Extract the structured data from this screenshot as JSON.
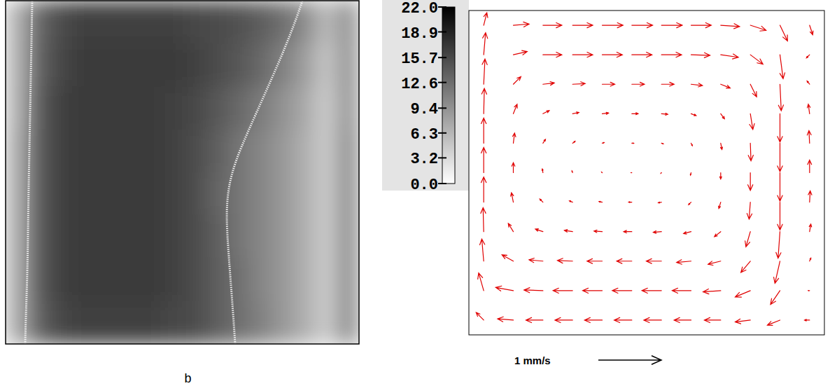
{
  "chart_data": [
    {
      "type": "heatmap",
      "tick_labels": false,
      "cells": [
        [
          6.5,
          13,
          15.5,
          16.5,
          16.5,
          16.5,
          16.5,
          16.5,
          16,
          15.5,
          15,
          14,
          12.5,
          10,
          6,
          9
        ],
        [
          6.5,
          13.5,
          16,
          17,
          17,
          17,
          17,
          17,
          16.5,
          15.5,
          14.5,
          13,
          11,
          8.5,
          5,
          9
        ],
        [
          6.5,
          14,
          16.5,
          17,
          17,
          17,
          17,
          16.5,
          16,
          14.5,
          13,
          11.5,
          9.5,
          7.5,
          4.5,
          9
        ],
        [
          7,
          14,
          16.5,
          17,
          17,
          17,
          17,
          16.5,
          15.5,
          14,
          12,
          10.5,
          9,
          7,
          4.5,
          9.5
        ],
        [
          7,
          14,
          16.5,
          17,
          17,
          17,
          17,
          16.5,
          15.5,
          13.5,
          12,
          10.5,
          9,
          7,
          4.5,
          9.5
        ],
        [
          7,
          14,
          16.5,
          17,
          17,
          17,
          17,
          16.5,
          15.5,
          14,
          12,
          10.5,
          9,
          7,
          4.5,
          9.5
        ],
        [
          7,
          14,
          16.5,
          17,
          17,
          17,
          17,
          16.5,
          15.5,
          14,
          12.5,
          10.5,
          9,
          7,
          4.5,
          9.5
        ],
        [
          7,
          13.5,
          16,
          16.5,
          16.5,
          16.5,
          16.5,
          16,
          15.5,
          14,
          12.5,
          11,
          9,
          7,
          4.5,
          9.5
        ]
      ],
      "colorbar": {
        "lim": [
          0,
          22
        ],
        "ticks": [
          {
            "value": 0,
            "label": "0.0"
          },
          3.2,
          6.3,
          9.4,
          12.6,
          15.7,
          18.9,
          {
            "value": 22,
            "label": "22.0"
          }
        ]
      },
      "annotations": [
        "b"
      ]
    },
    {
      "type": "quiver",
      "tick_labels": false,
      "color": "#e00000",
      "u": [
        [
          0.05,
          0.25,
          0.3,
          0.32,
          0.33,
          0.33,
          0.33,
          0.32,
          0.3,
          0.25,
          0.12,
          0.05
        ],
        [
          0.03,
          0.22,
          0.3,
          0.32,
          0.32,
          0.32,
          0.32,
          0.3,
          0.28,
          0.2,
          0.05,
          -0.05
        ],
        [
          0.02,
          0.12,
          0.18,
          0.2,
          0.2,
          0.2,
          0.2,
          0.18,
          0.15,
          0.1,
          0.02,
          -0.04
        ],
        [
          0.01,
          0.06,
          0.1,
          0.1,
          0.1,
          0.1,
          0.1,
          0.08,
          0.06,
          0.04,
          0,
          -0.02
        ],
        [
          0,
          0.02,
          0.04,
          0.04,
          0.03,
          0.03,
          0.03,
          0.02,
          0.02,
          0.01,
          0,
          -0.01
        ],
        [
          0,
          0,
          -0.01,
          -0.01,
          -0.01,
          -0.01,
          -0.01,
          -0.01,
          0,
          0,
          0,
          0
        ],
        [
          0,
          -0.03,
          -0.05,
          -0.05,
          -0.05,
          -0.05,
          -0.05,
          -0.04,
          -0.03,
          -0.02,
          0,
          0.01
        ],
        [
          -0.01,
          -0.08,
          -0.12,
          -0.13,
          -0.13,
          -0.13,
          -0.13,
          -0.12,
          -0.1,
          -0.07,
          -0.03,
          0.02
        ],
        [
          -0.03,
          -0.18,
          -0.22,
          -0.24,
          -0.24,
          -0.24,
          -0.24,
          -0.23,
          -0.2,
          -0.15,
          -0.08,
          0.02
        ],
        [
          -0.08,
          -0.28,
          -0.3,
          -0.31,
          -0.31,
          -0.31,
          -0.31,
          -0.3,
          -0.28,
          -0.24,
          -0.15,
          -0.02
        ],
        [
          -0.12,
          -0.25,
          -0.27,
          -0.28,
          -0.28,
          -0.28,
          -0.28,
          -0.27,
          -0.26,
          -0.24,
          -0.2,
          -0.08
        ]
      ],
      "v": [
        [
          0.2,
          0.02,
          0,
          0,
          0,
          0,
          0,
          0,
          -0.02,
          -0.08,
          -0.25,
          -0.15
        ],
        [
          0.35,
          0.05,
          0,
          0,
          0,
          0,
          0,
          -0.01,
          -0.04,
          -0.15,
          -0.38,
          -0.05
        ],
        [
          0.4,
          0.12,
          0.02,
          0.01,
          0,
          0,
          0,
          -0.02,
          -0.06,
          -0.2,
          -0.42,
          0.05
        ],
        [
          0.4,
          0.15,
          0.05,
          0.02,
          0.01,
          0,
          -0.01,
          -0.03,
          -0.08,
          -0.25,
          -0.45,
          0.15
        ],
        [
          0.4,
          0.16,
          0.06,
          0.03,
          0.01,
          0,
          -0.01,
          -0.04,
          -0.1,
          -0.28,
          -0.45,
          0.2
        ],
        [
          0.4,
          0.16,
          0.06,
          0.03,
          0.01,
          0,
          -0.01,
          -0.04,
          -0.1,
          -0.28,
          -0.45,
          0.2
        ],
        [
          0.4,
          0.15,
          0.05,
          0.02,
          0.01,
          0,
          -0.01,
          -0.04,
          -0.1,
          -0.27,
          -0.44,
          0.18
        ],
        [
          0.38,
          0.13,
          0.04,
          0.02,
          0.01,
          0,
          -0.01,
          -0.03,
          -0.08,
          -0.24,
          -0.42,
          0.12
        ],
        [
          0.35,
          0.1,
          0.02,
          0.01,
          0,
          0,
          0,
          -0.02,
          -0.05,
          -0.18,
          -0.35,
          0.05
        ],
        [
          0.28,
          0.05,
          0.01,
          0,
          0,
          0,
          0,
          0,
          -0.02,
          -0.1,
          -0.22,
          0
        ],
        [
          0.12,
          0.02,
          0,
          0,
          0,
          0,
          0,
          0,
          0,
          -0.03,
          -0.08,
          0
        ]
      ],
      "scale": {
        "value": 1,
        "label": "1 mm/s"
      }
    }
  ]
}
